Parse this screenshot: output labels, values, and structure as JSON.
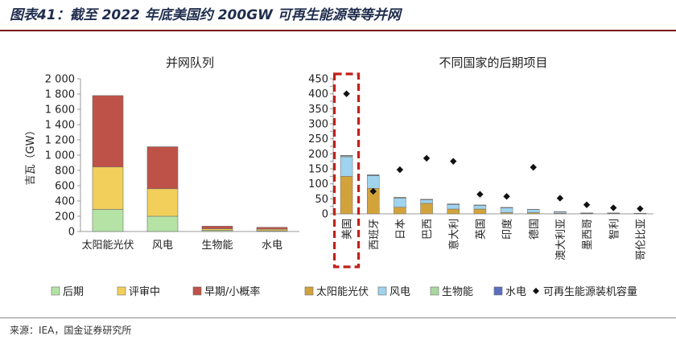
{
  "figure": {
    "title": "图表41：截至 2022 年底美国约 200GW 可再生能源等等并网",
    "source": "来源：IEA，国金证券研究所"
  },
  "colors": {
    "late": "#b5e3a5",
    "review": "#f2cf5a",
    "early": "#bf5248",
    "solar": "#d3a33b",
    "wind": "#9fd3ee",
    "bio": "#a9d8a0",
    "hydro": "#5b6fbf",
    "marker": "#111111",
    "highlight": "#c0211b"
  },
  "chart_data": [
    {
      "type": "bar",
      "stacked": true,
      "title": "并网队列",
      "ylabel": "吉瓦（GW）",
      "ylim": [
        0,
        2000
      ],
      "yticks": [
        "0",
        "200",
        "400",
        "600",
        "800",
        "1 000",
        "1 200",
        "1 400",
        "1 600",
        "1 800",
        "2 000"
      ],
      "categories": [
        "太阳能光伏",
        "风电",
        "生物能",
        "水电"
      ],
      "series": [
        {
          "name": "后期",
          "color_key": "late",
          "values": [
            290,
            200,
            15,
            10
          ]
        },
        {
          "name": "评审中",
          "color_key": "review",
          "values": [
            555,
            360,
            20,
            20
          ]
        },
        {
          "name": "早期/小概率",
          "color_key": "early",
          "values": [
            935,
            550,
            35,
            25
          ]
        }
      ],
      "legend_position": "bottom",
      "grid": false
    },
    {
      "type": "bar",
      "stacked": true,
      "title": "不同国家的后期项目",
      "ylim": [
        0,
        450
      ],
      "yticks": [
        "0",
        "25",
        "50",
        "75",
        "100",
        "125",
        "150",
        "175",
        "200",
        "225",
        "250",
        "275",
        "300",
        "325",
        "350",
        "375",
        "400",
        "425",
        "450"
      ],
      "categories": [
        "美国",
        "西班牙",
        "日本",
        "巴西",
        "意大利",
        "英国",
        "印度",
        "德国",
        "澳大利亚",
        "墨西哥",
        "智利",
        "哥伦比亚"
      ],
      "series": [
        {
          "name": "太阳能光伏",
          "color_key": "solar",
          "values": [
            125,
            85,
            22,
            35,
            16,
            16,
            4,
            4,
            2,
            1,
            1,
            0.5
          ]
        },
        {
          "name": "风电",
          "color_key": "wind",
          "values": [
            65,
            42,
            30,
            12,
            15,
            12,
            16,
            10,
            4,
            1,
            1,
            0.5
          ]
        },
        {
          "name": "生物能",
          "color_key": "bio",
          "values": [
            3,
            1,
            2,
            1,
            1,
            1,
            1,
            0.5,
            0.5,
            0.5,
            0.5,
            0.5
          ]
        },
        {
          "name": "水电",
          "color_key": "hydro",
          "values": [
            2,
            2,
            1,
            0.5,
            1,
            0.5,
            0.5,
            0.5,
            0.5,
            0.5,
            0.5,
            0.5
          ]
        }
      ],
      "markers": {
        "name": "可再生能源装机容量",
        "color_key": "marker",
        "values": [
          400,
          75,
          147,
          185,
          175,
          65,
          58,
          155,
          52,
          30,
          20,
          17
        ]
      },
      "highlighted_category": "美国",
      "legend_position": "bottom",
      "grid": false
    }
  ]
}
